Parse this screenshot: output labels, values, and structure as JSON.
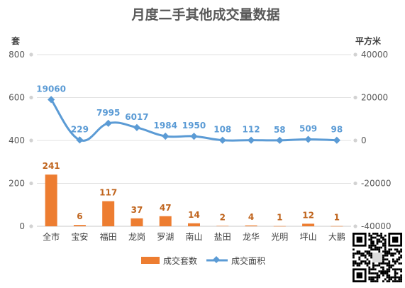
{
  "chart_data": {
    "type": "bar",
    "title": "月度二手其他成交量数据",
    "y_left_unit": "套",
    "y_right_unit": "平方米",
    "categories": [
      "全市",
      "宝安",
      "福田",
      "龙岗",
      "罗湖",
      "南山",
      "盐田",
      "龙华",
      "光明",
      "坪山",
      "大鹏"
    ],
    "ylim_left": [
      0,
      800
    ],
    "yticks_left": [
      0,
      200,
      400,
      600,
      800
    ],
    "ylim_right": [
      -40000,
      40000
    ],
    "yticks_right": [
      -40000,
      -20000,
      0,
      20000,
      40000
    ],
    "grid": true,
    "legend_position": "bottom",
    "series": [
      {
        "name": "成交套数",
        "type": "bar",
        "axis": "left",
        "color": "#ed7d31",
        "values": [
          241,
          6,
          117,
          37,
          47,
          14,
          2,
          4,
          1,
          12,
          1
        ]
      },
      {
        "name": "成交面积",
        "type": "line",
        "axis": "right",
        "color": "#5b9bd5",
        "values": [
          19060,
          229,
          7995,
          6017,
          1984,
          1950,
          108,
          112,
          58,
          509,
          98
        ]
      }
    ]
  },
  "qr_code": {
    "icon": "qr-code-icon"
  }
}
